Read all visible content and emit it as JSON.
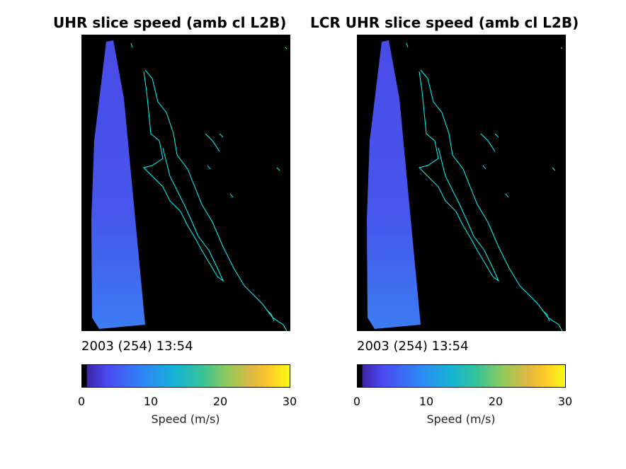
{
  "panels": [
    {
      "title": "UHR slice speed (amb cl L2B)",
      "timestamp": "2003 (254) 13:54"
    },
    {
      "title": "LCR UHR slice speed (amb cl L2B)",
      "timestamp": "2003 (254) 13:54"
    }
  ],
  "colorbar": {
    "label": "Speed (m/s)",
    "ticks": [
      "0",
      "10",
      "20",
      "30"
    ],
    "colors": [
      "#000000",
      "#3e26a8",
      "#4a49f1",
      "#2e87f7",
      "#14b4d4",
      "#38c396",
      "#92c95c",
      "#e0b841",
      "#fdc829",
      "#f9fb15"
    ]
  },
  "map": {
    "coastline_color": "#00ffff",
    "swath_colors": [
      "#4d4ded",
      "#4458ea",
      "#3d73f3"
    ]
  }
}
